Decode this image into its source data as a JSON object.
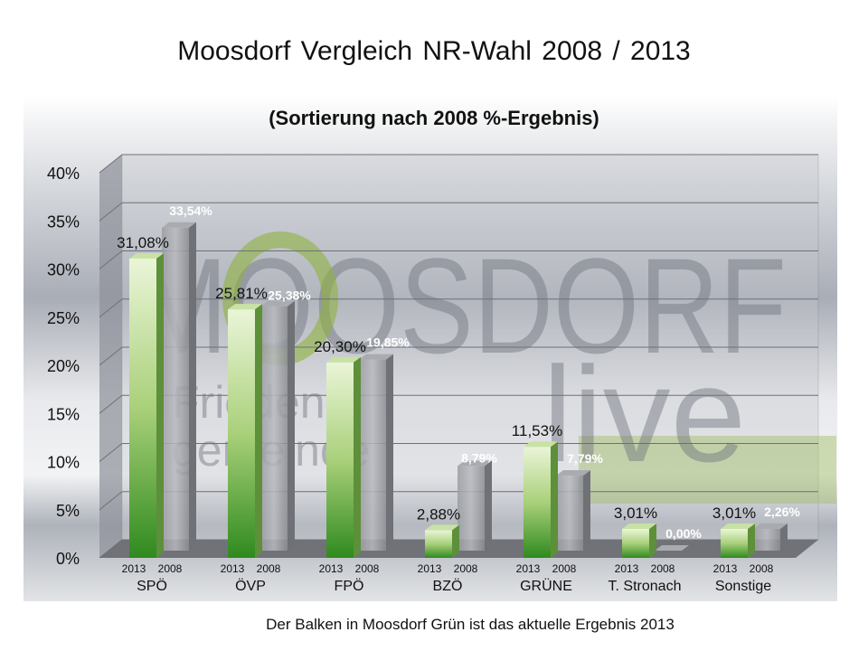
{
  "title": "Moosdorf  Vergleich NR-Wahl 2008 / 2013",
  "footer": "Der Balken in Moosdorf Grün ist das aktuelle Ergebnis 2013",
  "watermark_logo": {
    "text": "MOOSDORF live",
    "subtext": "Friedensgemeinde"
  },
  "colors": {
    "series_2013": "#3f9b2a",
    "series_2008": "#8e9096"
  },
  "chart_data": {
    "type": "bar",
    "title": "(Sortierung nach 2008 %-Ergebnis)",
    "categories": [
      "SPÖ",
      "ÖVP",
      "FPÖ",
      "BZÖ",
      "GRÜNE",
      "T. Stronach",
      "Sonstige"
    ],
    "series": [
      {
        "name": "2013",
        "values": [
          31.08,
          25.81,
          20.3,
          2.88,
          11.53,
          3.01,
          3.01
        ],
        "labels": [
          "31,08%",
          "25,81%",
          "20,30%",
          "2,88%",
          "11,53%",
          "3,01%",
          "3,01%"
        ]
      },
      {
        "name": "2008",
        "values": [
          33.54,
          25.38,
          19.85,
          8.79,
          7.79,
          0.0,
          2.26
        ],
        "labels": [
          "33,54%",
          "25,38%",
          "19,85%",
          "8,79%",
          "7,79%",
          "0,00%",
          "2,26%"
        ]
      }
    ],
    "yticks": [
      "0%",
      "5%",
      "10%",
      "15%",
      "20%",
      "25%",
      "30%",
      "35%",
      "40%"
    ],
    "ylim": [
      0,
      40
    ],
    "grid": true,
    "style": "3d-column"
  }
}
